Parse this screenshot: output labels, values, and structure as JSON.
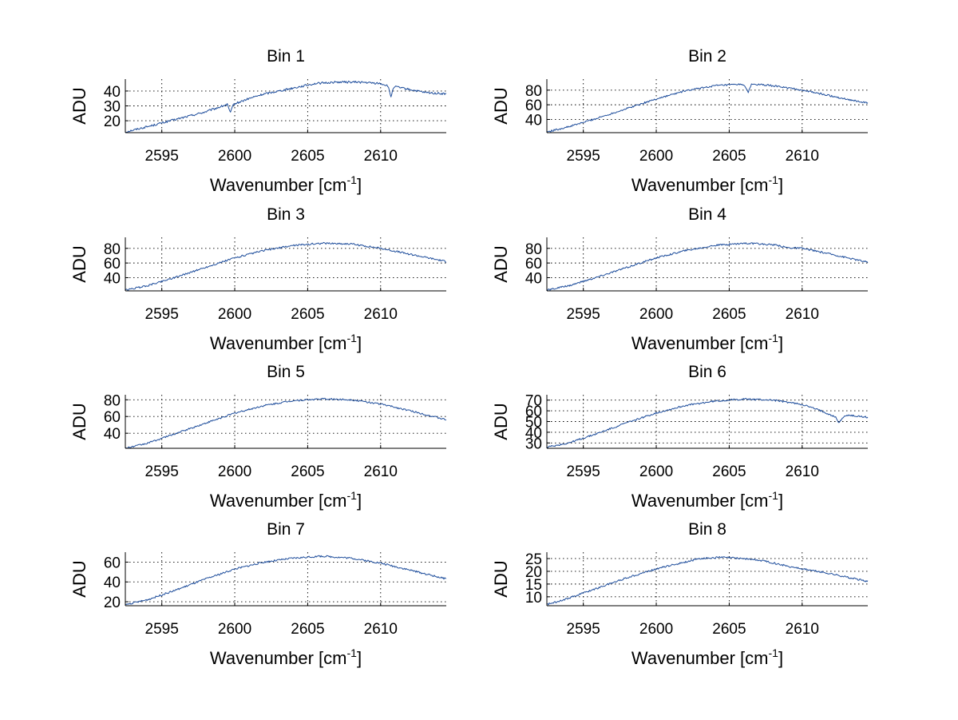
{
  "chart_data": [
    {
      "type": "line",
      "title": "Bin 1",
      "xlabel": "Wavenumber [cm",
      "xlabel_sup": "-1",
      "xlabel_end": "]",
      "ylabel": "ADU",
      "xlim": [
        2592.5,
        2614.5
      ],
      "ylim": [
        12,
        48
      ],
      "xticks": [
        2595,
        2600,
        2605,
        2610
      ],
      "yticks": [
        20,
        30,
        40
      ],
      "grid": true,
      "color": "#1f4e9c",
      "x": [
        2592.5,
        2594,
        2596,
        2598,
        2599.5,
        2599.7,
        2599.9,
        2601,
        2602,
        2604,
        2605.5,
        2607,
        2608.5,
        2610,
        2610.5,
        2610.7,
        2610.9,
        2612,
        2613,
        2614.5
      ],
      "y": [
        12.5,
        16,
        21,
        26,
        31,
        25,
        31,
        35,
        38,
        42,
        45,
        46,
        46,
        45,
        43.5,
        36,
        43,
        41,
        39,
        38
      ],
      "noise": 0.7
    },
    {
      "type": "line",
      "title": "Bin 2",
      "xlabel": "Wavenumber [cm",
      "xlabel_sup": "-1",
      "xlabel_end": "]",
      "ylabel": "ADU",
      "xlim": [
        2592.5,
        2614.5
      ],
      "ylim": [
        22,
        95
      ],
      "xticks": [
        2595,
        2600,
        2605,
        2610
      ],
      "yticks": [
        40,
        60,
        80
      ],
      "grid": true,
      "color": "#1f4e9c",
      "x": [
        2592.5,
        2594,
        2596,
        2598,
        2600,
        2602,
        2604,
        2606,
        2606.3,
        2606.5,
        2607,
        2608,
        2610,
        2612,
        2614.5
      ],
      "y": [
        23,
        30,
        42,
        55,
        68,
        79,
        86,
        88,
        76,
        88,
        87.5,
        86,
        80,
        72,
        62
      ],
      "noise": 1.2
    },
    {
      "type": "line",
      "title": "Bin 3",
      "xlabel": "Wavenumber [cm",
      "xlabel_sup": "-1",
      "xlabel_end": "]",
      "ylabel": "ADU",
      "xlim": [
        2592.5,
        2614.5
      ],
      "ylim": [
        22,
        95
      ],
      "xticks": [
        2595,
        2600,
        2605,
        2610
      ],
      "yticks": [
        40,
        60,
        80
      ],
      "grid": true,
      "color": "#1f4e9c",
      "x": [
        2592.5,
        2594,
        2596,
        2598,
        2600,
        2602,
        2604,
        2606,
        2608,
        2610,
        2612,
        2614.5
      ],
      "y": [
        23,
        29,
        41,
        54,
        67,
        77,
        84,
        87,
        86,
        80,
        72,
        62
      ],
      "noise": 1.2
    },
    {
      "type": "line",
      "title": "Bin 4",
      "xlabel": "Wavenumber [cm",
      "xlabel_sup": "-1",
      "xlabel_end": "]",
      "ylabel": "ADU",
      "xlim": [
        2592.5,
        2614.5
      ],
      "ylim": [
        22,
        95
      ],
      "xticks": [
        2595,
        2600,
        2605,
        2610
      ],
      "yticks": [
        40,
        60,
        80
      ],
      "grid": true,
      "color": "#1f4e9c",
      "x": [
        2592.5,
        2594,
        2596,
        2598,
        2600,
        2602,
        2604,
        2606,
        2608,
        2609,
        2610,
        2612,
        2614.5
      ],
      "y": [
        23,
        29,
        41,
        54,
        67,
        77,
        84,
        87,
        85,
        81,
        80,
        72,
        61
      ],
      "noise": 1.2
    },
    {
      "type": "line",
      "title": "Bin 5",
      "xlabel": "Wavenumber [cm",
      "xlabel_sup": "-1",
      "xlabel_end": "]",
      "ylabel": "ADU",
      "xlim": [
        2592.5,
        2614.5
      ],
      "ylim": [
        22,
        86
      ],
      "xticks": [
        2595,
        2600,
        2605,
        2610
      ],
      "yticks": [
        40,
        60,
        80
      ],
      "grid": true,
      "color": "#1f4e9c",
      "x": [
        2592.5,
        2594,
        2596,
        2598,
        2600,
        2602,
        2604,
        2606,
        2608,
        2610,
        2612,
        2614.5
      ],
      "y": [
        22,
        28,
        40,
        52,
        64,
        73,
        79,
        81,
        80,
        75,
        67,
        56
      ],
      "noise": 1.0
    },
    {
      "type": "line",
      "title": "Bin 6",
      "xlabel": "Wavenumber [cm",
      "xlabel_sup": "-1",
      "xlabel_end": "]",
      "ylabel": "ADU",
      "xlim": [
        2592.5,
        2614.5
      ],
      "ylim": [
        25,
        75
      ],
      "xticks": [
        2595,
        2600,
        2605,
        2610
      ],
      "yticks": [
        30,
        40,
        50,
        60,
        70
      ],
      "ytick_labels": [
        "30",
        "40",
        "50",
        "60",
        "70"
      ],
      "grid": true,
      "color": "#1f4e9c",
      "x": [
        2592.5,
        2594,
        2596,
        2598,
        2600,
        2602,
        2604,
        2606,
        2608,
        2610,
        2611.5,
        2612.3,
        2612.5,
        2613,
        2614.5
      ],
      "y": [
        26,
        30,
        39,
        49,
        58,
        65,
        69,
        71,
        70,
        66,
        59,
        54,
        49,
        56,
        54
      ],
      "noise": 0.8
    },
    {
      "type": "line",
      "title": "Bin 7",
      "xlabel": "Wavenumber [cm",
      "xlabel_sup": "-1",
      "xlabel_end": "]",
      "ylabel": "ADU",
      "xlim": [
        2592.5,
        2614.5
      ],
      "ylim": [
        16,
        70
      ],
      "xticks": [
        2595,
        2600,
        2605,
        2610
      ],
      "yticks": [
        20,
        40,
        60
      ],
      "grid": true,
      "color": "#1f4e9c",
      "x": [
        2592.5,
        2594,
        2596,
        2598,
        2600,
        2602,
        2604,
        2606,
        2608,
        2610,
        2612,
        2614.5
      ],
      "y": [
        17,
        22,
        32,
        43,
        53,
        60,
        64,
        66,
        64,
        59,
        52,
        43
      ],
      "noise": 0.9
    },
    {
      "type": "line",
      "title": "Bin 8",
      "xlabel": "Wavenumber [cm",
      "xlabel_sup": "-1",
      "xlabel_end": "]",
      "ylabel": "ADU",
      "xlim": [
        2592.5,
        2614.5
      ],
      "ylim": [
        6.5,
        27.5
      ],
      "xticks": [
        2595,
        2600,
        2605,
        2610
      ],
      "yticks": [
        10,
        15,
        20,
        25
      ],
      "grid": true,
      "color": "#1f4e9c",
      "x": [
        2592.5,
        2594,
        2596,
        2598,
        2600,
        2601.5,
        2603,
        2604.5,
        2606,
        2607.5,
        2609,
        2610.5,
        2612,
        2614.5
      ],
      "y": [
        7,
        9.5,
        13.5,
        17.5,
        21,
        23,
        25,
        25.5,
        25,
        24,
        22,
        20.5,
        19,
        16
      ],
      "noise": 0.35
    }
  ]
}
